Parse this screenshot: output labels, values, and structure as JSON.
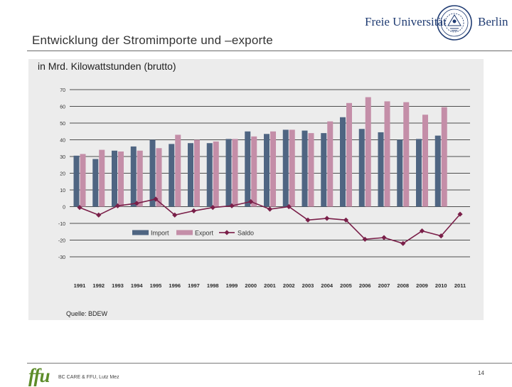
{
  "slide": {
    "title": "Entwicklung der Stromimporte und –exporte",
    "footer": "BC CARE & FFU, Lutz Mez",
    "page_number": "14"
  },
  "logos": {
    "university_left": "Freie Universität",
    "university_right": "Berlin",
    "ffu": "ffu"
  },
  "colors": {
    "import": "#4f6582",
    "export": "#c48ea8",
    "saldo": "#7a1f49",
    "panel": "#ececec",
    "university_blue": "#1f3b72",
    "ffu_green": "#5d8c2a"
  },
  "chart_data": {
    "type": "bar",
    "subtitle": "in Mrd. Kilowattstunden (brutto)",
    "source": "Quelle: BDEW",
    "categories": [
      "1991",
      "1992",
      "1993",
      "1994",
      "1995",
      "1996",
      "1997",
      "1998",
      "1999",
      "2000",
      "2001",
      "2002",
      "2003",
      "2004",
      "2005",
      "2006",
      "2007",
      "2008",
      "2009",
      "2010",
      "2011"
    ],
    "series": [
      {
        "name": "Import",
        "kind": "bar",
        "values": [
          30.5,
          28.5,
          33.5,
          36,
          40,
          37.5,
          38,
          38,
          40.5,
          45,
          43.5,
          46,
          45.5,
          44,
          53.5,
          46.5,
          44.5,
          40,
          40.5,
          42.5,
          null
        ]
      },
      {
        "name": "Export",
        "kind": "bar",
        "values": [
          31.5,
          34,
          33,
          33.5,
          35,
          43,
          40,
          39,
          40.5,
          42,
          45,
          46,
          44,
          51,
          62,
          65.5,
          63,
          62.5,
          55,
          59.5,
          null
        ]
      },
      {
        "name": "Saldo",
        "kind": "line",
        "values": [
          -0.5,
          -5,
          0.5,
          2,
          4.5,
          -5,
          -2.5,
          -0.5,
          0.5,
          3,
          -1.5,
          0,
          -8,
          -7,
          -8,
          -19.5,
          -18.5,
          -22,
          -14.5,
          -17.5,
          -4.5
        ]
      }
    ],
    "y_ticks": [
      70,
      60,
      50,
      40,
      30,
      20,
      10,
      0,
      -10,
      -20,
      -30
    ],
    "ylim": [
      -30,
      70
    ],
    "legend_position": "bottom-center",
    "grid": true
  }
}
